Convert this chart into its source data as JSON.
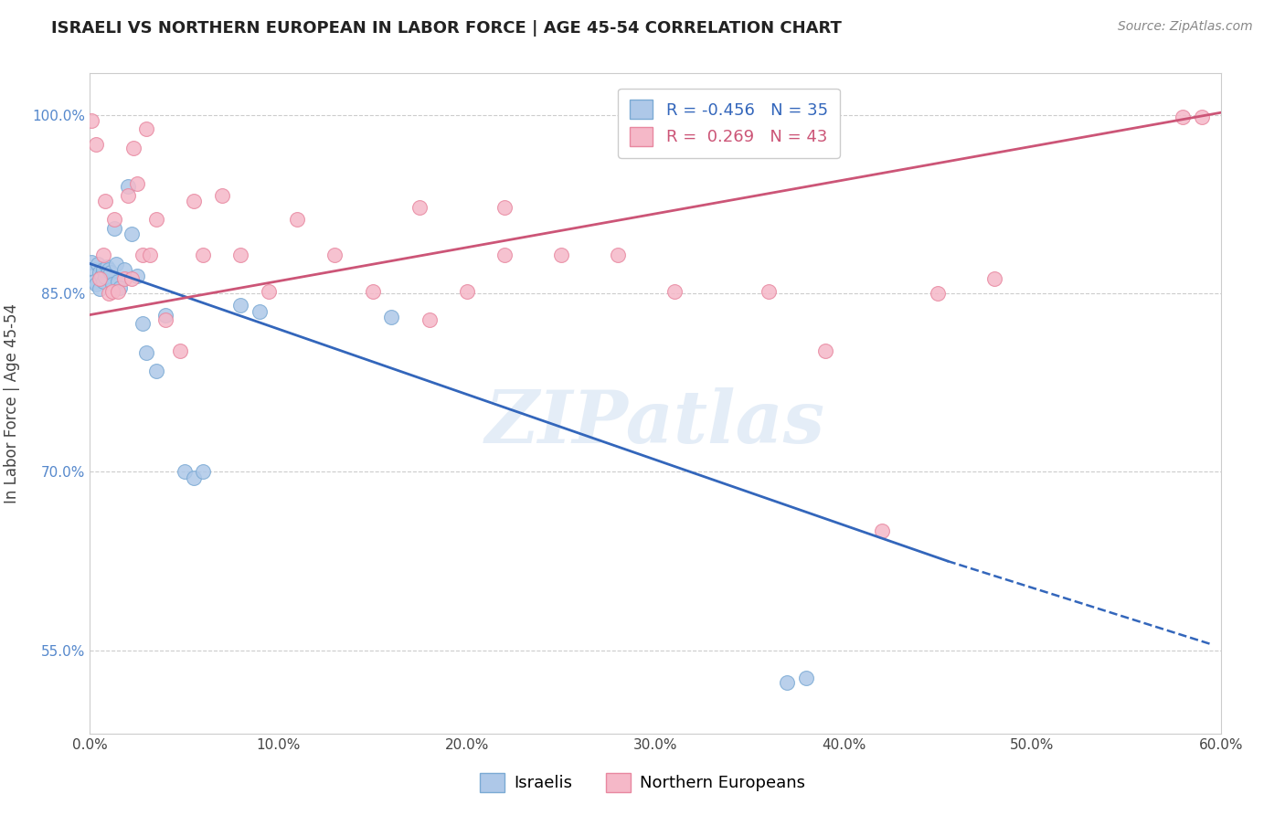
{
  "title": "ISRAELI VS NORTHERN EUROPEAN IN LABOR FORCE | AGE 45-54 CORRELATION CHART",
  "source": "Source: ZipAtlas.com",
  "ylabel": "In Labor Force | Age 45-54",
  "xlim": [
    0.0,
    0.6
  ],
  "ylim": [
    0.48,
    1.035
  ],
  "yticks": [
    0.55,
    0.7,
    0.85,
    1.0
  ],
  "ytick_labels": [
    "55.0%",
    "70.0%",
    "85.0%",
    "100.0%"
  ],
  "xticks": [
    0.0,
    0.1,
    0.2,
    0.3,
    0.4,
    0.5,
    0.6
  ],
  "xtick_labels": [
    "0.0%",
    "10.0%",
    "20.0%",
    "30.0%",
    "40.0%",
    "50.0%",
    "60.0%"
  ],
  "israelis_x": [
    0.001,
    0.002,
    0.002,
    0.003,
    0.004,
    0.005,
    0.005,
    0.006,
    0.007,
    0.007,
    0.008,
    0.009,
    0.01,
    0.011,
    0.012,
    0.013,
    0.014,
    0.015,
    0.016,
    0.018,
    0.02,
    0.022,
    0.025,
    0.028,
    0.03,
    0.035,
    0.04,
    0.05,
    0.055,
    0.06,
    0.08,
    0.09,
    0.37,
    0.38,
    0.16
  ],
  "israelis_y": [
    0.876,
    0.87,
    0.86,
    0.858,
    0.875,
    0.868,
    0.854,
    0.865,
    0.86,
    0.87,
    0.864,
    0.872,
    0.87,
    0.868,
    0.858,
    0.905,
    0.875,
    0.86,
    0.855,
    0.87,
    0.94,
    0.9,
    0.865,
    0.825,
    0.8,
    0.785,
    0.832,
    0.7,
    0.695,
    0.7,
    0.84,
    0.835,
    0.523,
    0.527,
    0.83
  ],
  "northern_x": [
    0.001,
    0.003,
    0.005,
    0.007,
    0.008,
    0.01,
    0.012,
    0.013,
    0.015,
    0.018,
    0.02,
    0.022,
    0.023,
    0.025,
    0.028,
    0.03,
    0.032,
    0.035,
    0.04,
    0.048,
    0.055,
    0.06,
    0.07,
    0.08,
    0.095,
    0.11,
    0.13,
    0.15,
    0.175,
    0.2,
    0.22,
    0.25,
    0.28,
    0.31,
    0.36,
    0.39,
    0.42,
    0.45,
    0.48,
    0.22,
    0.18,
    0.58,
    0.59
  ],
  "northern_y": [
    0.995,
    0.975,
    0.862,
    0.882,
    0.928,
    0.85,
    0.852,
    0.912,
    0.852,
    0.862,
    0.932,
    0.862,
    0.972,
    0.942,
    0.882,
    0.988,
    0.882,
    0.912,
    0.828,
    0.802,
    0.928,
    0.882,
    0.932,
    0.882,
    0.852,
    0.912,
    0.882,
    0.852,
    0.922,
    0.852,
    0.882,
    0.882,
    0.882,
    0.852,
    0.852,
    0.802,
    0.65,
    0.85,
    0.862,
    0.922,
    0.828,
    0.998,
    0.998
  ],
  "R_israeli": -0.456,
  "N_israeli": 35,
  "R_northern": 0.269,
  "N_northern": 43,
  "color_israeli": "#aec8e8",
  "color_northern": "#f5b8c8",
  "edge_color_israeli": "#7baad4",
  "edge_color_northern": "#e888a0",
  "line_color_israeli": "#3366bb",
  "line_color_northern": "#cc5577",
  "isr_line_x0": 0.0,
  "isr_line_y0": 0.875,
  "isr_line_x1": 0.455,
  "isr_line_y1": 0.625,
  "isr_line_solid_end": 0.455,
  "isr_line_x_dash_end": 0.595,
  "isr_line_y_dash_end": 0.555,
  "nor_line_x0": 0.0,
  "nor_line_y0": 0.832,
  "nor_line_x1": 0.6,
  "nor_line_y1": 1.002,
  "watermark_text": "ZIPatlas",
  "background_color": "#ffffff",
  "grid_color": "#cccccc"
}
